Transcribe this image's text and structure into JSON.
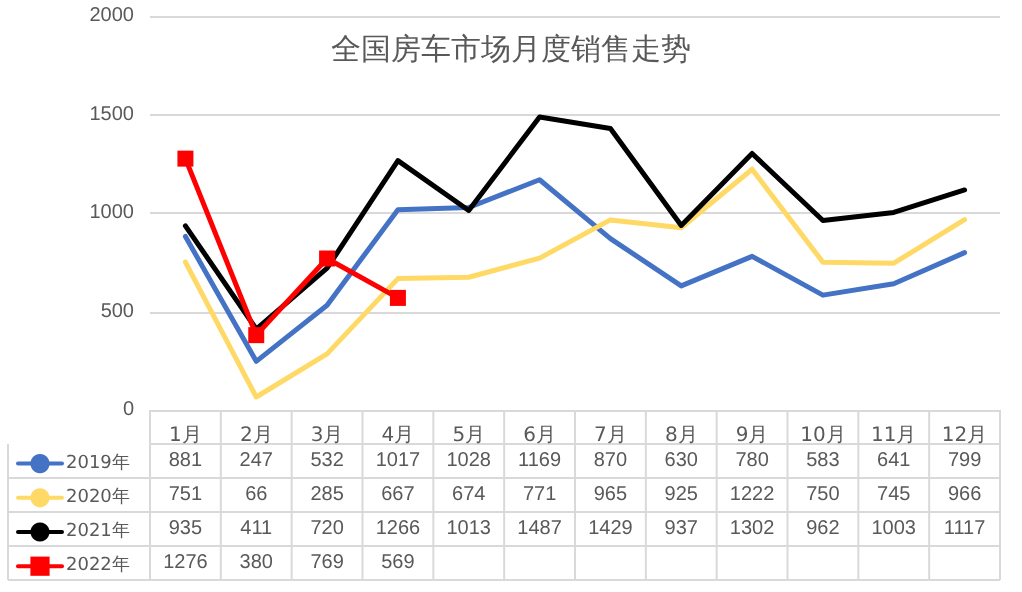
{
  "chart_data": {
    "type": "line",
    "title": "全国房车市场月度销售走势",
    "categories": [
      "1月",
      "2月",
      "3月",
      "4月",
      "5月",
      "6月",
      "7月",
      "8月",
      "9月",
      "10月",
      "11月",
      "12月"
    ],
    "series": [
      {
        "name": "2019年",
        "color": "#4472c4",
        "values": [
          881,
          247,
          532,
          1017,
          1028,
          1169,
          870,
          630,
          780,
          583,
          641,
          799
        ]
      },
      {
        "name": "2020年",
        "color": "#ffd966",
        "values": [
          751,
          66,
          285,
          667,
          674,
          771,
          965,
          925,
          1222,
          750,
          745,
          966
        ]
      },
      {
        "name": "2021年",
        "color": "#000000",
        "values": [
          935,
          411,
          720,
          1266,
          1013,
          1487,
          1429,
          937,
          1302,
          962,
          1003,
          1117
        ]
      },
      {
        "name": "2022年",
        "color": "#ff0000",
        "marker": "square",
        "values": [
          1276,
          380,
          769,
          569,
          null,
          null,
          null,
          null,
          null,
          null,
          null,
          null
        ]
      }
    ],
    "ylim": [
      0,
      2000
    ],
    "yticks": [
      0,
      500,
      1000,
      1500,
      2000
    ],
    "grid": "y",
    "legend": "bottom",
    "data_labels": true
  }
}
